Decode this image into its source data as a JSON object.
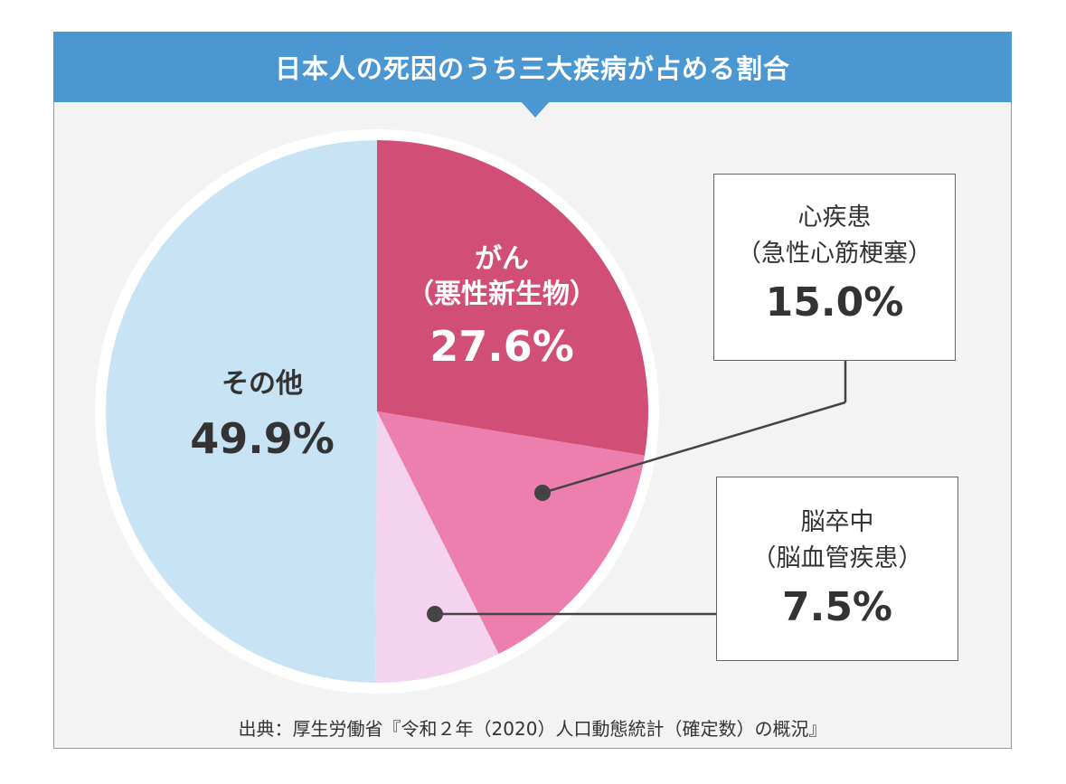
{
  "header": {
    "title": "日本人の死因のうち三大疾病が占める割合"
  },
  "labels": {
    "gan": {
      "name": "がん",
      "sub": "（悪性新生物）",
      "value": "27.6%"
    },
    "other": {
      "name": "その他",
      "value": "49.9%"
    },
    "heart": {
      "name": "心疾患",
      "sub": "（急性心筋梗塞）",
      "value": "15.0%"
    },
    "stroke": {
      "name": "脳卒中",
      "sub": "（脳血管疾患）",
      "value": "7.5%"
    }
  },
  "source": "出典：厚生労働省『令和２年（2020）人口動態統計（確定数）の概況』",
  "chart_data": {
    "type": "pie",
    "title": "日本人の死因のうち三大疾病が占める割合",
    "categories": [
      "がん（悪性新生物）",
      "心疾患（急性心筋梗塞）",
      "脳卒中（脳血管疾患）",
      "その他"
    ],
    "values": [
      27.6,
      15.0,
      7.5,
      49.9
    ],
    "colors": [
      "#d14f77",
      "#ec7fae",
      "#f4d3ee",
      "#c8e4f4"
    ]
  }
}
